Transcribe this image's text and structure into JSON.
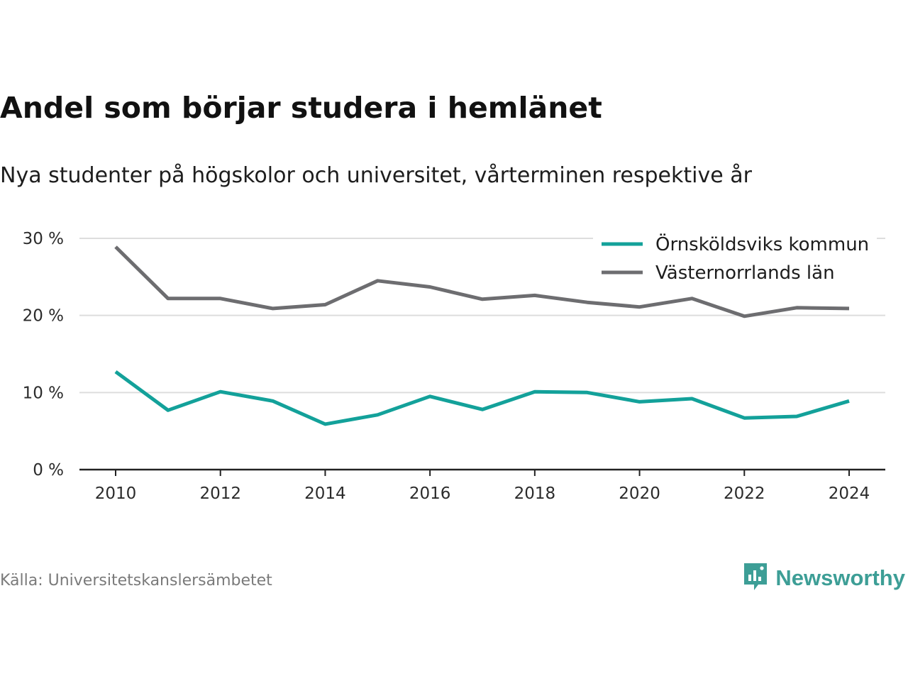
{
  "title": "Andel som börjar studera i hemlänet",
  "subtitle": "Nya studenter på högskolor och universitet, vårterminen respektive år",
  "source": "Källa: Universitetskanslersämbetet",
  "brand": "Newsworthy",
  "colors": {
    "series1": "#13a19a",
    "series2": "#6d6d70",
    "grid": "#dddddd",
    "axis": "#222222",
    "brand": "#3d9e96"
  },
  "chart_data": {
    "type": "line",
    "x": [
      2010,
      2011,
      2012,
      2013,
      2014,
      2015,
      2016,
      2017,
      2018,
      2019,
      2020,
      2021,
      2022,
      2023,
      2024
    ],
    "xticks": [
      2010,
      2012,
      2014,
      2016,
      2018,
      2020,
      2022,
      2024
    ],
    "yticks": [
      0,
      10,
      20,
      30
    ],
    "ytick_labels": [
      "0 %",
      "10 %",
      "20 %",
      "30 %"
    ],
    "ylim": [
      0,
      30
    ],
    "xlabel": "",
    "ylabel": "",
    "grid": true,
    "legend": "top-right",
    "series": [
      {
        "name": "Örnsköldsviks kommun",
        "color": "#13a19a",
        "values": [
          12.7,
          7.7,
          10.1,
          8.9,
          5.9,
          7.1,
          9.5,
          7.8,
          10.1,
          10.0,
          8.8,
          9.2,
          6.7,
          6.9,
          8.9
        ]
      },
      {
        "name": "Västernorrlands län",
        "color": "#6d6d70",
        "values": [
          28.9,
          22.2,
          22.2,
          20.9,
          21.4,
          24.5,
          23.7,
          22.1,
          22.6,
          21.7,
          21.1,
          22.2,
          19.9,
          21.0,
          20.9
        ]
      }
    ]
  }
}
